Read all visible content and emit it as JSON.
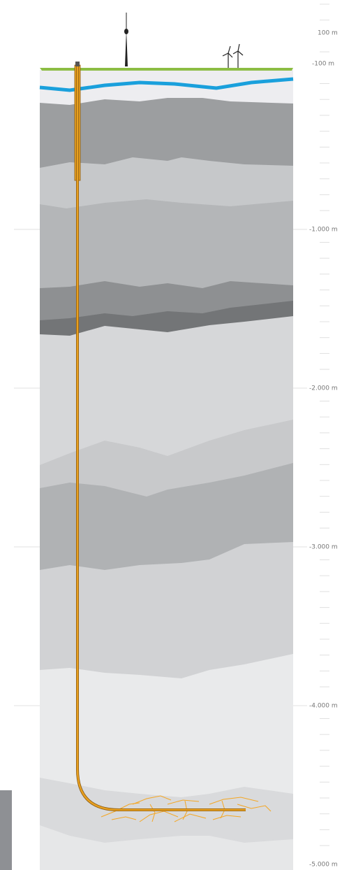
{
  "scale": {
    "labels": [
      "100 m",
      "-100 m",
      "-1.000 m",
      "-2.000 m",
      "-3.000 m",
      "-4.000 m",
      "-5.000 m"
    ]
  }
}
